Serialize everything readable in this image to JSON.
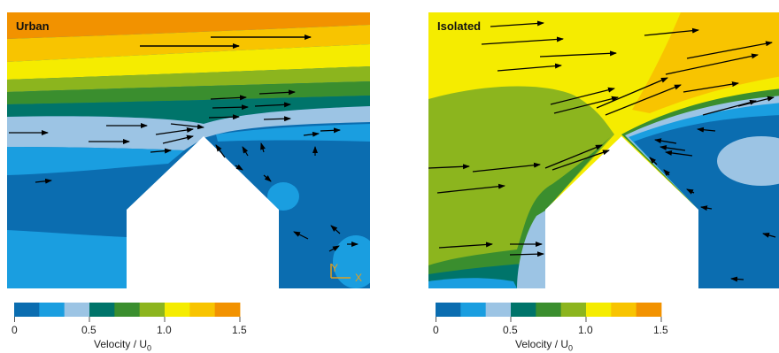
{
  "panels": [
    {
      "id": "urban",
      "label": "Urban"
    },
    {
      "id": "isolated",
      "label": "Isolated"
    }
  ],
  "axes": {
    "y": "Y",
    "x": "X"
  },
  "colorbar": {
    "colors": [
      "#0b6db0",
      "#1a9ee0",
      "#9cc4e4",
      "#00746a",
      "#3a8e2e",
      "#8cb51e",
      "#f5ec00",
      "#f8c400",
      "#f29200"
    ],
    "tick_labels": [
      "0",
      "0.5",
      "1.0",
      "1.5"
    ],
    "title": "Velocity / U",
    "title_sub": "0"
  }
}
